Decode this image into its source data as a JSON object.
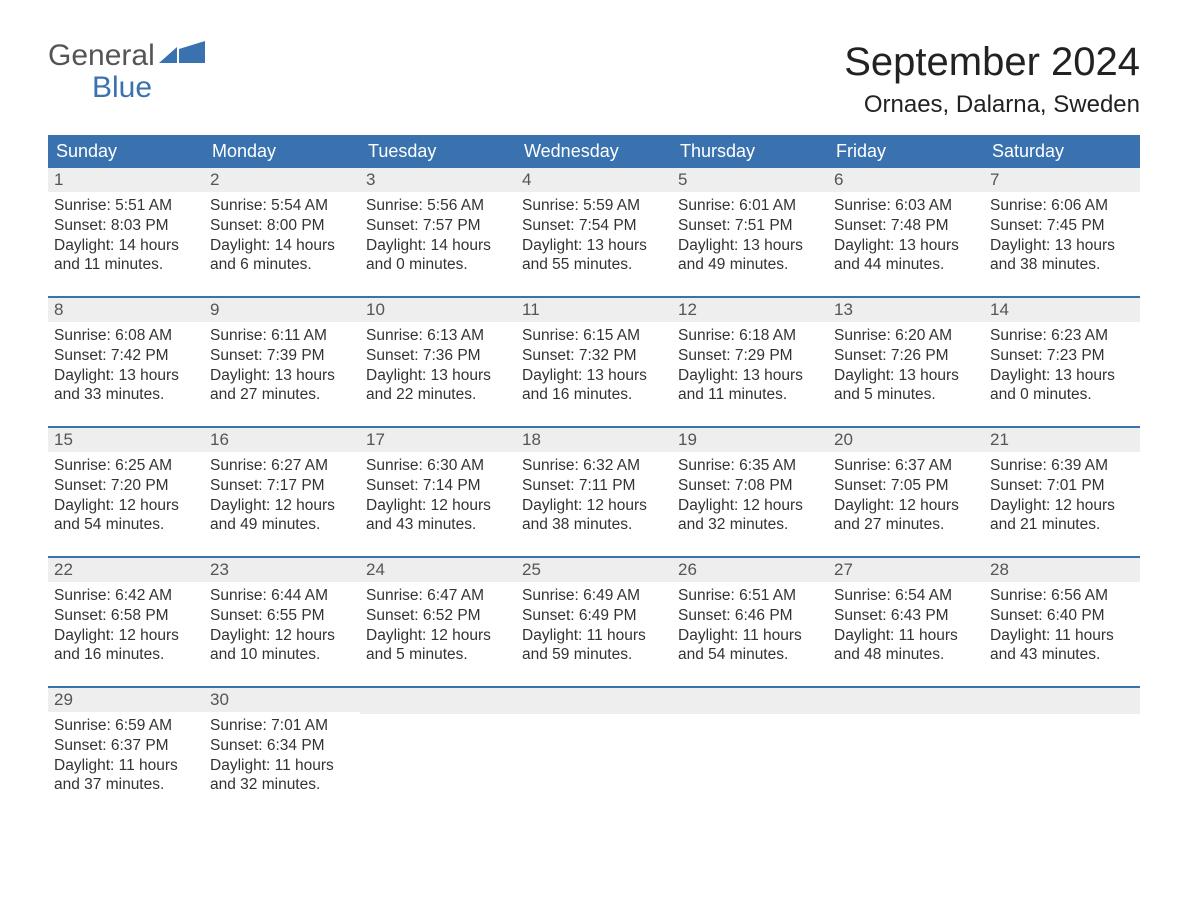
{
  "logo": {
    "text_top": "General",
    "text_bottom": "Blue",
    "icon_color": "#3a72b0"
  },
  "title": "September 2024",
  "location": "Ornaes, Dalarna, Sweden",
  "weekday_headers": [
    "Sunday",
    "Monday",
    "Tuesday",
    "Wednesday",
    "Thursday",
    "Friday",
    "Saturday"
  ],
  "colors": {
    "header_bg": "#3a72b0",
    "header_text": "#ffffff",
    "daynum_bg": "#eeeeee",
    "row_border": "#3a72b0",
    "body_text": "#333333"
  },
  "fonts": {
    "title_size_pt": 30,
    "location_size_pt": 18,
    "weekday_size_pt": 14,
    "daynum_size_pt": 13,
    "body_size_pt": 12
  },
  "weeks": [
    [
      {
        "day": 1,
        "sunrise": "5:51 AM",
        "sunset": "8:03 PM",
        "daylight": "14 hours and 11 minutes."
      },
      {
        "day": 2,
        "sunrise": "5:54 AM",
        "sunset": "8:00 PM",
        "daylight": "14 hours and 6 minutes."
      },
      {
        "day": 3,
        "sunrise": "5:56 AM",
        "sunset": "7:57 PM",
        "daylight": "14 hours and 0 minutes."
      },
      {
        "day": 4,
        "sunrise": "5:59 AM",
        "sunset": "7:54 PM",
        "daylight": "13 hours and 55 minutes."
      },
      {
        "day": 5,
        "sunrise": "6:01 AM",
        "sunset": "7:51 PM",
        "daylight": "13 hours and 49 minutes."
      },
      {
        "day": 6,
        "sunrise": "6:03 AM",
        "sunset": "7:48 PM",
        "daylight": "13 hours and 44 minutes."
      },
      {
        "day": 7,
        "sunrise": "6:06 AM",
        "sunset": "7:45 PM",
        "daylight": "13 hours and 38 minutes."
      }
    ],
    [
      {
        "day": 8,
        "sunrise": "6:08 AM",
        "sunset": "7:42 PM",
        "daylight": "13 hours and 33 minutes."
      },
      {
        "day": 9,
        "sunrise": "6:11 AM",
        "sunset": "7:39 PM",
        "daylight": "13 hours and 27 minutes."
      },
      {
        "day": 10,
        "sunrise": "6:13 AM",
        "sunset": "7:36 PM",
        "daylight": "13 hours and 22 minutes."
      },
      {
        "day": 11,
        "sunrise": "6:15 AM",
        "sunset": "7:32 PM",
        "daylight": "13 hours and 16 minutes."
      },
      {
        "day": 12,
        "sunrise": "6:18 AM",
        "sunset": "7:29 PM",
        "daylight": "13 hours and 11 minutes."
      },
      {
        "day": 13,
        "sunrise": "6:20 AM",
        "sunset": "7:26 PM",
        "daylight": "13 hours and 5 minutes."
      },
      {
        "day": 14,
        "sunrise": "6:23 AM",
        "sunset": "7:23 PM",
        "daylight": "13 hours and 0 minutes."
      }
    ],
    [
      {
        "day": 15,
        "sunrise": "6:25 AM",
        "sunset": "7:20 PM",
        "daylight": "12 hours and 54 minutes."
      },
      {
        "day": 16,
        "sunrise": "6:27 AM",
        "sunset": "7:17 PM",
        "daylight": "12 hours and 49 minutes."
      },
      {
        "day": 17,
        "sunrise": "6:30 AM",
        "sunset": "7:14 PM",
        "daylight": "12 hours and 43 minutes."
      },
      {
        "day": 18,
        "sunrise": "6:32 AM",
        "sunset": "7:11 PM",
        "daylight": "12 hours and 38 minutes."
      },
      {
        "day": 19,
        "sunrise": "6:35 AM",
        "sunset": "7:08 PM",
        "daylight": "12 hours and 32 minutes."
      },
      {
        "day": 20,
        "sunrise": "6:37 AM",
        "sunset": "7:05 PM",
        "daylight": "12 hours and 27 minutes."
      },
      {
        "day": 21,
        "sunrise": "6:39 AM",
        "sunset": "7:01 PM",
        "daylight": "12 hours and 21 minutes."
      }
    ],
    [
      {
        "day": 22,
        "sunrise": "6:42 AM",
        "sunset": "6:58 PM",
        "daylight": "12 hours and 16 minutes."
      },
      {
        "day": 23,
        "sunrise": "6:44 AM",
        "sunset": "6:55 PM",
        "daylight": "12 hours and 10 minutes."
      },
      {
        "day": 24,
        "sunrise": "6:47 AM",
        "sunset": "6:52 PM",
        "daylight": "12 hours and 5 minutes."
      },
      {
        "day": 25,
        "sunrise": "6:49 AM",
        "sunset": "6:49 PM",
        "daylight": "11 hours and 59 minutes."
      },
      {
        "day": 26,
        "sunrise": "6:51 AM",
        "sunset": "6:46 PM",
        "daylight": "11 hours and 54 minutes."
      },
      {
        "day": 27,
        "sunrise": "6:54 AM",
        "sunset": "6:43 PM",
        "daylight": "11 hours and 48 minutes."
      },
      {
        "day": 28,
        "sunrise": "6:56 AM",
        "sunset": "6:40 PM",
        "daylight": "11 hours and 43 minutes."
      }
    ],
    [
      {
        "day": 29,
        "sunrise": "6:59 AM",
        "sunset": "6:37 PM",
        "daylight": "11 hours and 37 minutes."
      },
      {
        "day": 30,
        "sunrise": "7:01 AM",
        "sunset": "6:34 PM",
        "daylight": "11 hours and 32 minutes."
      },
      {
        "empty": true
      },
      {
        "empty": true
      },
      {
        "empty": true
      },
      {
        "empty": true
      },
      {
        "empty": true
      }
    ]
  ],
  "labels": {
    "sunrise": "Sunrise:",
    "sunset": "Sunset:",
    "daylight": "Daylight:"
  }
}
